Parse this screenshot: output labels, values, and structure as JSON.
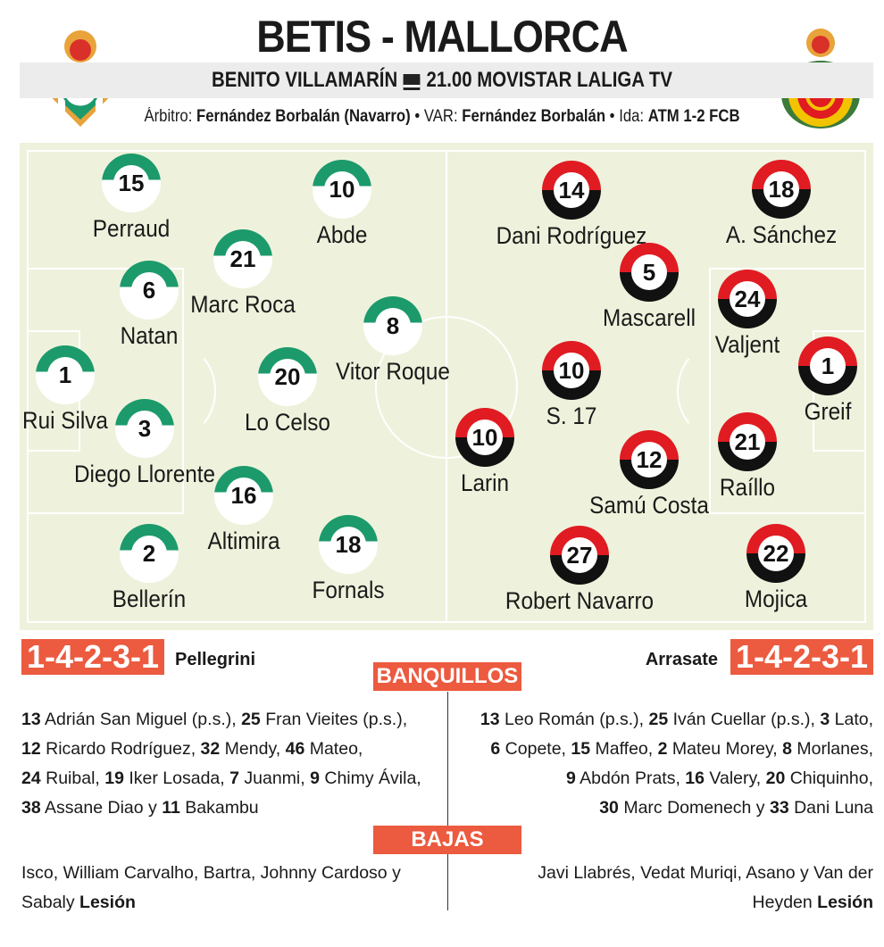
{
  "header": {
    "title": "BETIS - MALLORCA",
    "venue": "BENITO VILLAMARÍN",
    "broadcast": "21.00 MOVISTAR LALIGA TV",
    "tv_icon": "tv-icon",
    "referee_label": "Árbitro:",
    "referee": "Fernández Borbalán (Navarro)",
    "var_label": "VAR:",
    "var": "Fernández Borbalán",
    "first_leg_label": "Ida:",
    "first_leg": "ATM 1-2 FCB"
  },
  "home": {
    "name": "Betis",
    "crest": "betis-crest",
    "formation": "1-4-2-3-1",
    "coach": "Pellegrini",
    "color": "#1c9a6c",
    "players": [
      {
        "n": "15",
        "name": "Perraud"
      },
      {
        "n": "10",
        "name": "Abde"
      },
      {
        "n": "21",
        "name": "Marc Roca"
      },
      {
        "n": "6",
        "name": "Natan"
      },
      {
        "n": "8",
        "name": "Vitor Roque"
      },
      {
        "n": "1",
        "name": "Rui Silva"
      },
      {
        "n": "20",
        "name": "Lo Celso"
      },
      {
        "n": "3",
        "name": "Diego Llorente"
      },
      {
        "n": "16",
        "name": "Altimira"
      },
      {
        "n": "2",
        "name": "Bellerín"
      },
      {
        "n": "18",
        "name": "Fornals"
      }
    ],
    "bench": [
      [
        "13",
        "Adrián San Miguel (p.s.), "
      ],
      [
        "25",
        "Fran Vieites (p.s.),"
      ],
      [
        "12",
        "Ricardo Rodríguez, "
      ],
      [
        "32",
        "Mendy, "
      ],
      [
        "46",
        "Mateo,"
      ],
      [
        "24",
        "Ruibal, "
      ],
      [
        "19",
        "Iker Losada, "
      ],
      [
        "7",
        "Juanmi, "
      ],
      [
        "9",
        "Chimy Ávila,"
      ],
      [
        "38",
        "Assane Diao y "
      ],
      [
        "11",
        "Bakambu"
      ]
    ],
    "absences": "Isco, William Carvalho, Bartra, Johnny Cardoso y Sabaly",
    "absence_reason": "Lesión"
  },
  "away": {
    "name": "Mallorca",
    "crest": "mallorca-crest",
    "formation": "1-4-2-3-1",
    "coach": "Arrasate",
    "color": "#e01b22",
    "players": [
      {
        "n": "14",
        "name": "Dani Rodríguez"
      },
      {
        "n": "18",
        "name": "A. Sánchez"
      },
      {
        "n": "5",
        "name": "Mascarell"
      },
      {
        "n": "24",
        "name": "Valjent"
      },
      {
        "n": "1",
        "name": "Greif"
      },
      {
        "n": "10",
        "name": "S. 17"
      },
      {
        "n": "10",
        "name": "Larin"
      },
      {
        "n": "12",
        "name": "Samú Costa"
      },
      {
        "n": "21",
        "name": "Raíllo"
      },
      {
        "n": "27",
        "name": "Robert Navarro"
      },
      {
        "n": "22",
        "name": "Mojica"
      }
    ],
    "bench": [
      [
        "13",
        "Leo Román (p.s.), "
      ],
      [
        "25",
        "Iván Cuellar (p.s.), "
      ],
      [
        "3",
        "Lato,"
      ],
      [
        "6",
        "Copete, "
      ],
      [
        "15",
        "Maffeo, "
      ],
      [
        "2",
        "Mateu Morey, "
      ],
      [
        "8",
        "Morlanes,"
      ],
      [
        "9",
        "Abdón Prats, "
      ],
      [
        "16",
        "Valery, "
      ],
      [
        "20",
        "Chiquinho,"
      ],
      [
        "30",
        "Marc Domenech y "
      ],
      [
        "33",
        "Dani Luna"
      ]
    ],
    "absences": "Javi Llabrés, Vedat Muriqi, Asano y Van der Heyden",
    "absence_reason": "Lesión"
  },
  "sections": {
    "bench": "BANQUILLOS",
    "absences": "BAJAS"
  },
  "accent": "#ec5a3f"
}
